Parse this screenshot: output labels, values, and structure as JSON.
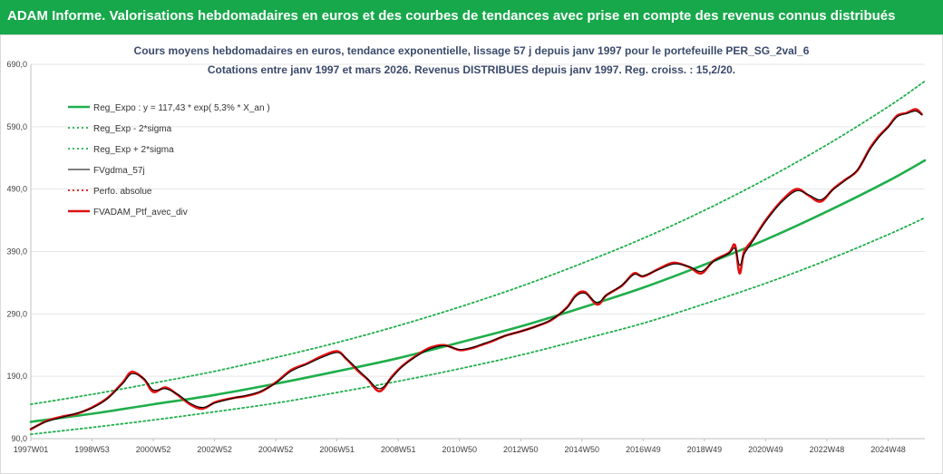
{
  "header": {
    "title": "ADAM Informe. Valorisations hebdomadaires en euros et des courbes de tendances avec prise en compte des revenus connus distribués"
  },
  "colors": {
    "banner": "#16a84a",
    "trend": "#1fae4b",
    "portfolio": "#e01010",
    "gdma": "#000000",
    "perfo": "#e01010"
  },
  "chart_data": {
    "type": "line",
    "title": [
      "Cours moyens hebdomadaires en euros, tendance exponentielle, lissage 57 j depuis janv 1997 pour le portefeuille PER_SG_2val_6",
      "Cotations entre janv 1997 et mars 2026. Revenus DISTRIBUES depuis janv 1997. Reg. croiss. : 15,2/20."
    ],
    "xlabel": "",
    "ylabel": "",
    "x_range": [
      1997.0,
      2026.2
    ],
    "ylim": [
      90,
      690
    ],
    "y_ticks": [
      "90,0",
      "190,0",
      "290,0",
      "390,0",
      "490,0",
      "590,0",
      "690,0"
    ],
    "y_tick_values": [
      90,
      190,
      290,
      390,
      490,
      590,
      690
    ],
    "x_ticks": [
      "1997W01",
      "1998W53",
      "2000W52",
      "2002W52",
      "2004W52",
      "2006W51",
      "2008W51",
      "2010W50",
      "2012W50",
      "2014W50",
      "2016W49",
      "2018W49",
      "2020W49",
      "2022W48",
      "2024W48"
    ],
    "x_tick_values": [
      1997.0,
      1999.0,
      2001.0,
      2003.0,
      2005.0,
      2007.0,
      2009.0,
      2011.0,
      2013.0,
      2015.0,
      2017.0,
      2019.0,
      2021.0,
      2023.0,
      2025.0
    ],
    "legend_position": "top-left",
    "legend": [
      {
        "key": "reg",
        "label": "Reg_Expo : y = 117,43 * exp( 5,3% *  X_an )",
        "style": "solid"
      },
      {
        "key": "low",
        "label": "Reg_Exp - 2*sigma",
        "style": "dotted"
      },
      {
        "key": "high",
        "label": "Reg_Exp + 2*sigma",
        "style": "dotted"
      },
      {
        "key": "gdma",
        "label": "FVgdma_57j",
        "style": "solid"
      },
      {
        "key": "perfo",
        "label": "Perfo. absolue",
        "style": "dotted"
      },
      {
        "key": "ptf",
        "label": "FVADAM_Ptf_avec_div",
        "style": "solid"
      }
    ],
    "series": [
      {
        "key": "reg",
        "x": [
          1997.0,
          1999.0,
          2001.0,
          2003.0,
          2005.0,
          2007.0,
          2009.0,
          2011.0,
          2013.0,
          2015.0,
          2017.0,
          2019.0,
          2021.0,
          2023.0,
          2025.0,
          2026.2
        ],
        "values": [
          117,
          130,
          145,
          160,
          178,
          198,
          219,
          244,
          270,
          300,
          332,
          369,
          409,
          454,
          503,
          536
        ]
      },
      {
        "key": "low",
        "x": [
          1997.0,
          1999.0,
          2001.0,
          2003.0,
          2005.0,
          2007.0,
          2009.0,
          2011.0,
          2013.0,
          2015.0,
          2017.0,
          2019.0,
          2021.0,
          2023.0,
          2025.0,
          2026.2
        ],
        "values": [
          97,
          108,
          120,
          133,
          147,
          164,
          182,
          202,
          224,
          249,
          275,
          306,
          339,
          376,
          417,
          444
        ]
      },
      {
        "key": "high",
        "x": [
          1997.0,
          1999.0,
          2001.0,
          2003.0,
          2005.0,
          2007.0,
          2009.0,
          2011.0,
          2013.0,
          2015.0,
          2017.0,
          2019.0,
          2021.0,
          2023.0,
          2025.0,
          2026.2
        ],
        "values": [
          145,
          161,
          179,
          198,
          220,
          244,
          271,
          301,
          334,
          371,
          411,
          456,
          506,
          561,
          622,
          663
        ]
      },
      {
        "key": "ptf",
        "x": [
          1997.0,
          1997.5,
          1998.0,
          1998.5,
          1999.0,
          1999.5,
          2000.0,
          2000.3,
          2000.7,
          2001.0,
          2001.4,
          2001.8,
          2002.2,
          2002.6,
          2003.0,
          2003.3,
          2003.7,
          2004.0,
          2004.5,
          2005.0,
          2005.5,
          2006.0,
          2006.5,
          2007.0,
          2007.3,
          2007.7,
          2008.0,
          2008.4,
          2008.8,
          2009.1,
          2009.5,
          2010.0,
          2010.5,
          2011.0,
          2011.4,
          2011.7,
          2012.0,
          2012.5,
          2013.0,
          2013.5,
          2014.0,
          2014.5,
          2014.8,
          2015.1,
          2015.5,
          2015.8,
          2016.3,
          2016.7,
          2017.0,
          2017.5,
          2018.0,
          2018.5,
          2018.9,
          2019.3,
          2019.8,
          2020.0,
          2020.15,
          2020.3,
          2020.6,
          2021.0,
          2021.5,
          2022.0,
          2022.4,
          2022.8,
          2023.2,
          2023.6,
          2024.0,
          2024.4,
          2024.7,
          2025.0,
          2025.3,
          2025.6,
          2025.9,
          2026.1
        ],
        "values": [
          105,
          118,
          125,
          130,
          140,
          155,
          180,
          197,
          185,
          165,
          172,
          160,
          145,
          138,
          148,
          152,
          156,
          158,
          165,
          180,
          200,
          210,
          222,
          230,
          218,
          198,
          185,
          166,
          190,
          205,
          220,
          235,
          240,
          232,
          235,
          240,
          245,
          255,
          262,
          270,
          280,
          300,
          320,
          325,
          305,
          320,
          335,
          355,
          350,
          362,
          372,
          365,
          355,
          375,
          388,
          400,
          355,
          390,
          410,
          440,
          470,
          490,
          480,
          470,
          490,
          505,
          520,
          555,
          575,
          590,
          608,
          612,
          618,
          610
        ]
      },
      {
        "key": "gdma",
        "x": [
          1997.0,
          1997.5,
          1998.0,
          1998.5,
          1999.0,
          1999.5,
          2000.0,
          2000.3,
          2000.7,
          2001.0,
          2001.4,
          2001.8,
          2002.2,
          2002.6,
          2003.0,
          2003.3,
          2003.7,
          2004.0,
          2004.5,
          2005.0,
          2005.5,
          2006.0,
          2006.5,
          2007.0,
          2007.3,
          2007.7,
          2008.0,
          2008.4,
          2008.8,
          2009.1,
          2009.5,
          2010.0,
          2010.5,
          2011.0,
          2011.4,
          2011.7,
          2012.0,
          2012.5,
          2013.0,
          2013.5,
          2014.0,
          2014.5,
          2014.8,
          2015.1,
          2015.5,
          2015.8,
          2016.3,
          2016.7,
          2017.0,
          2017.5,
          2018.0,
          2018.5,
          2018.9,
          2019.3,
          2019.8,
          2020.0,
          2020.15,
          2020.3,
          2020.6,
          2021.0,
          2021.5,
          2022.0,
          2022.4,
          2022.8,
          2023.2,
          2023.6,
          2024.0,
          2024.4,
          2024.7,
          2025.0,
          2025.3,
          2025.6,
          2025.9,
          2026.1
        ],
        "values": [
          106,
          117,
          124,
          131,
          139,
          154,
          178,
          194,
          186,
          168,
          170,
          161,
          147,
          140,
          147,
          151,
          156,
          159,
          166,
          179,
          198,
          209,
          220,
          228,
          219,
          200,
          186,
          170,
          188,
          204,
          219,
          233,
          239,
          233,
          236,
          241,
          246,
          255,
          262,
          270,
          281,
          299,
          318,
          323,
          308,
          320,
          336,
          353,
          351,
          361,
          370,
          366,
          358,
          374,
          387,
          395,
          368,
          386,
          408,
          438,
          468,
          487,
          481,
          473,
          489,
          504,
          521,
          553,
          573,
          589,
          606,
          611,
          615,
          609
        ]
      }
    ]
  }
}
